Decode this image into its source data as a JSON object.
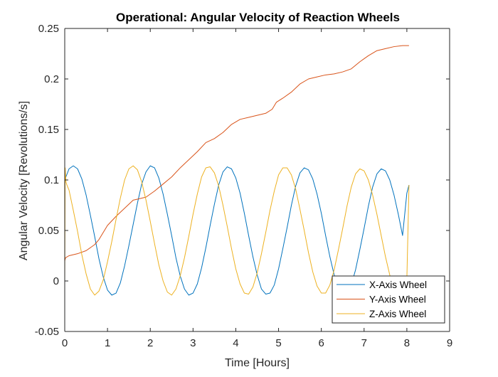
{
  "chart_data": {
    "type": "line",
    "title": "Operational: Angular Velocity of Reaction Wheels",
    "xlabel": "Time [Hours]",
    "ylabel": "Angular Velocity [Revolutions/s]",
    "xlim": [
      0,
      9
    ],
    "ylim": [
      -0.05,
      0.25
    ],
    "xticks": [
      0,
      1,
      2,
      3,
      4,
      5,
      6,
      7,
      8,
      9
    ],
    "yticks": [
      -0.05,
      0,
      0.05,
      0.1,
      0.15,
      0.2,
      0.25
    ],
    "xtick_labels": [
      "0",
      "1",
      "2",
      "3",
      "4",
      "5",
      "6",
      "7",
      "8",
      "9"
    ],
    "ytick_labels": [
      "-0.05",
      "0",
      "0.05",
      "0.1",
      "0.15",
      "0.2",
      "0.25"
    ],
    "grid": false,
    "legend_position": "bottom-right",
    "series": [
      {
        "name": "X-Axis Wheel",
        "color": "#0072BD",
        "x": [
          0,
          0.1,
          0.2,
          0.3,
          0.4,
          0.5,
          0.6,
          0.7,
          0.8,
          0.9,
          1.0,
          1.1,
          1.2,
          1.3,
          1.4,
          1.5,
          1.6,
          1.7,
          1.8,
          1.9,
          2.0,
          2.1,
          2.2,
          2.3,
          2.4,
          2.5,
          2.6,
          2.7,
          2.8,
          2.9,
          3.0,
          3.1,
          3.2,
          3.3,
          3.4,
          3.5,
          3.6,
          3.7,
          3.8,
          3.9,
          4.0,
          4.1,
          4.2,
          4.3,
          4.4,
          4.5,
          4.6,
          4.7,
          4.8,
          4.9,
          5.0,
          5.1,
          5.2,
          5.3,
          5.4,
          5.5,
          5.6,
          5.7,
          5.8,
          5.9,
          6.0,
          6.1,
          6.2,
          6.3,
          6.4,
          6.5,
          6.6,
          6.7,
          6.8,
          6.9,
          7.0,
          7.1,
          7.2,
          7.3,
          7.4,
          7.5,
          7.6,
          7.7,
          7.8,
          7.9,
          8.0,
          8.05
        ],
        "y": [
          0.1,
          0.111,
          0.114,
          0.111,
          0.101,
          0.085,
          0.065,
          0.044,
          0.022,
          0.004,
          -0.009,
          -0.014,
          -0.012,
          -0.002,
          0.015,
          0.035,
          0.056,
          0.077,
          0.096,
          0.108,
          0.114,
          0.112,
          0.102,
          0.086,
          0.066,
          0.045,
          0.023,
          0.005,
          -0.008,
          -0.014,
          -0.012,
          -0.003,
          0.013,
          0.033,
          0.055,
          0.076,
          0.095,
          0.108,
          0.113,
          0.111,
          0.102,
          0.087,
          0.067,
          0.045,
          0.024,
          0.006,
          -0.008,
          -0.013,
          -0.012,
          -0.004,
          0.012,
          0.032,
          0.053,
          0.075,
          0.094,
          0.107,
          0.112,
          0.11,
          0.101,
          0.086,
          0.067,
          0.045,
          0.024,
          0.006,
          -0.007,
          -0.013,
          -0.012,
          -0.004,
          0.011,
          0.031,
          0.052,
          0.074,
          0.093,
          0.106,
          0.111,
          0.109,
          0.1,
          0.085,
          0.066,
          0.045,
          0.087,
          0.095
        ]
      },
      {
        "name": "Y-Axis Wheel",
        "color": "#D95319",
        "x": [
          0,
          0.02,
          0.1,
          0.3,
          0.5,
          0.7,
          0.8,
          1.0,
          1.2,
          1.4,
          1.6,
          1.7,
          1.9,
          2.1,
          2.3,
          2.5,
          2.7,
          2.9,
          3.1,
          3.3,
          3.5,
          3.7,
          3.9,
          4.1,
          4.3,
          4.5,
          4.7,
          4.85,
          4.95,
          5.1,
          5.3,
          5.5,
          5.7,
          5.9,
          6.1,
          6.3,
          6.5,
          6.7,
          6.9,
          7.1,
          7.3,
          7.5,
          7.7,
          7.9,
          8.05
        ],
        "y": [
          0.02,
          0.023,
          0.025,
          0.027,
          0.03,
          0.036,
          0.041,
          0.055,
          0.064,
          0.072,
          0.08,
          0.081,
          0.083,
          0.089,
          0.096,
          0.103,
          0.112,
          0.12,
          0.128,
          0.137,
          0.141,
          0.147,
          0.155,
          0.16,
          0.162,
          0.164,
          0.166,
          0.17,
          0.177,
          0.181,
          0.187,
          0.195,
          0.2,
          0.202,
          0.204,
          0.205,
          0.207,
          0.21,
          0.217,
          0.223,
          0.228,
          0.23,
          0.232,
          0.233,
          0.233
        ]
      },
      {
        "name": "Z-Axis Wheel",
        "color": "#EDB120",
        "x": [
          0,
          0.01,
          0.03,
          0.05,
          0.1,
          0.2,
          0.3,
          0.4,
          0.5,
          0.6,
          0.7,
          0.8,
          0.9,
          1.0,
          1.1,
          1.2,
          1.3,
          1.4,
          1.5,
          1.6,
          1.7,
          1.8,
          1.9,
          2.0,
          2.1,
          2.2,
          2.3,
          2.4,
          2.5,
          2.6,
          2.7,
          2.8,
          2.9,
          3.0,
          3.1,
          3.2,
          3.3,
          3.4,
          3.5,
          3.6,
          3.7,
          3.8,
          3.9,
          4.0,
          4.1,
          4.2,
          4.3,
          4.4,
          4.5,
          4.6,
          4.7,
          4.8,
          4.9,
          5.0,
          5.1,
          5.2,
          5.3,
          5.4,
          5.5,
          5.6,
          5.7,
          5.8,
          5.9,
          6.0,
          6.1,
          6.2,
          6.3,
          6.4,
          6.5,
          6.6,
          6.7,
          6.8,
          6.9,
          7.0,
          7.1,
          7.2,
          7.3,
          7.4,
          7.5,
          7.6,
          7.7,
          7.8,
          7.9,
          8.0,
          8.05
        ],
        "y": [
          0.0,
          0.112,
          0.098,
          0.095,
          0.09,
          0.07,
          0.049,
          0.026,
          0.007,
          -0.008,
          -0.014,
          -0.01,
          0.001,
          0.019,
          0.039,
          0.061,
          0.082,
          0.1,
          0.111,
          0.114,
          0.11,
          0.098,
          0.08,
          0.059,
          0.037,
          0.016,
          0.0,
          -0.011,
          -0.014,
          -0.008,
          0.005,
          0.023,
          0.044,
          0.066,
          0.086,
          0.103,
          0.112,
          0.113,
          0.107,
          0.094,
          0.075,
          0.054,
          0.032,
          0.012,
          -0.003,
          -0.012,
          -0.013,
          -0.006,
          0.008,
          0.027,
          0.048,
          0.07,
          0.089,
          0.105,
          0.112,
          0.112,
          0.105,
          0.091,
          0.071,
          0.05,
          0.028,
          0.009,
          -0.005,
          -0.012,
          -0.012,
          -0.004,
          0.011,
          0.031,
          0.052,
          0.074,
          0.093,
          0.106,
          0.111,
          0.109,
          0.1,
          0.085,
          0.066,
          0.045,
          0.024,
          0.006,
          -0.007,
          -0.012,
          -0.01,
          0.002,
          0.095
        ]
      }
    ]
  }
}
